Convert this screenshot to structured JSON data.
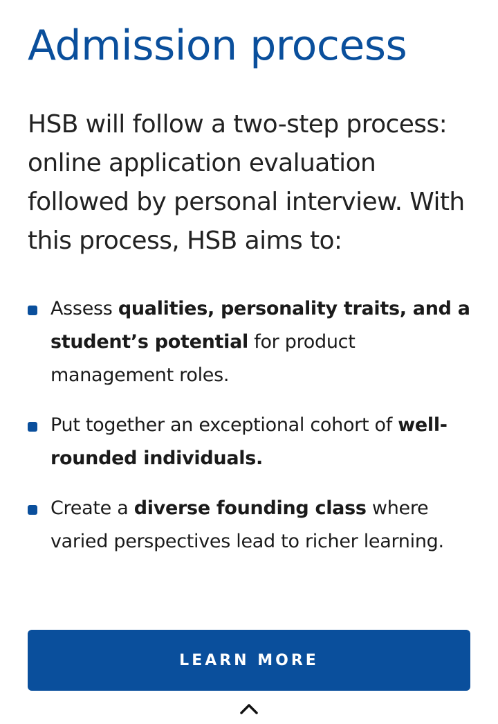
{
  "section": {
    "title": "Admission process",
    "intro": "HSB will follow a two-step process: online application evaluation followed by personal interview. With this process, HSB aims to:"
  },
  "bullets": [
    {
      "pre": "Assess ",
      "bold": "qualities, personality traits, and a student’s potential",
      "post": " for product management roles."
    },
    {
      "pre": "Put together an exceptional cohort of ",
      "bold": "well-rounded individuals.",
      "post": ""
    },
    {
      "pre": "Create a ",
      "bold": "diverse founding class",
      "post": " where varied perspectives lead to richer learning."
    }
  ],
  "cta": {
    "label": "LEARN MORE"
  },
  "icons": {
    "bullet": "square-bullet-icon",
    "scroll_top": "chevron-up-icon"
  },
  "colors": {
    "brand_blue": "#0a4f9c",
    "text": "#1a1a1a",
    "background": "#ffffff"
  }
}
